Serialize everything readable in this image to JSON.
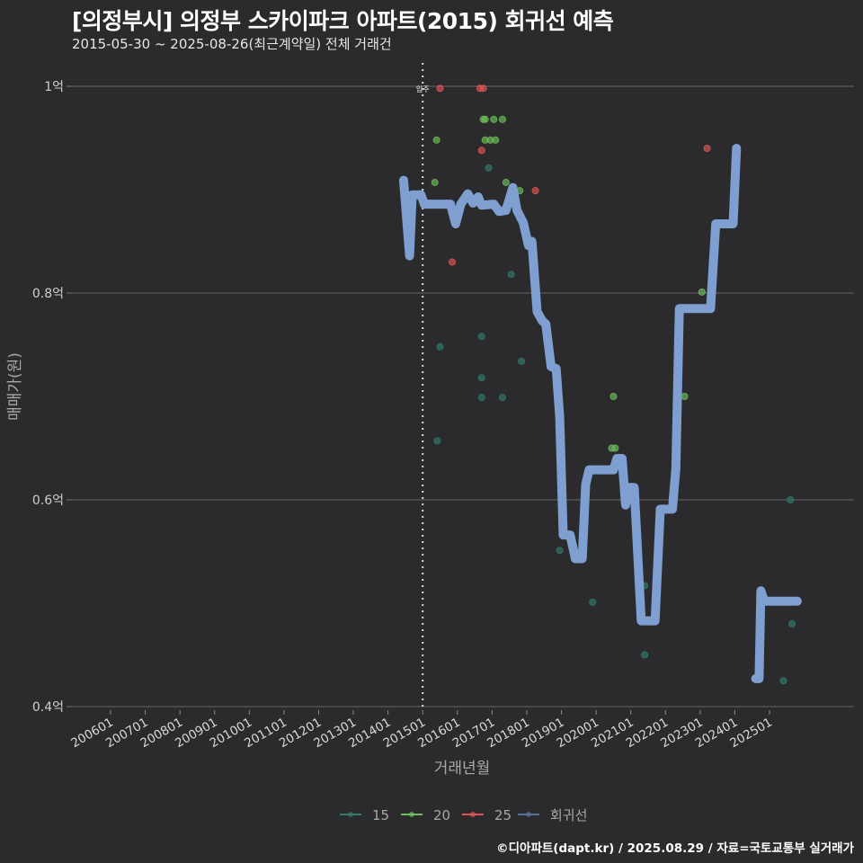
{
  "header": {
    "title": "[의정부시] 의정부 스카이파크 아파트(2015) 회귀선 예측",
    "subtitle": "2015-05-30 ~ 2025-08-26(최근계약일) 전체 거래건"
  },
  "footer": {
    "credit": "©디아파트(dapt.kr) / 2025.08.29 / 자료=국토교통부 실거래가"
  },
  "colors": {
    "background": "#2b2b2d",
    "grid": "#5a5a5a",
    "s15": "#2f7a6a",
    "s20": "#6cbf5a",
    "s25": "#e05555",
    "regression": "#7f9fd0"
  },
  "chart_data": {
    "type": "scatter",
    "title": "[의정부시] 의정부 스카이파크 아파트(2015) 회귀선 예측",
    "subtitle": "2015-05-30 ~ 2025-08-26(최근계약일) 전체 거래건",
    "xlabel": "거래년월",
    "ylabel": "매매가(원)",
    "x_tick_labels": [
      "200601",
      "200701",
      "200801",
      "200901",
      "201001",
      "201101",
      "201201",
      "201301",
      "201401",
      "201501",
      "201601",
      "201701",
      "201801",
      "201901",
      "202001",
      "202101",
      "202201",
      "202301",
      "202401",
      "202501"
    ],
    "y_tick_labels": [
      "0.4억",
      "0.6억",
      "0.8억",
      "1억"
    ],
    "y_ticks": [
      0.4,
      0.6,
      0.8,
      1.0
    ],
    "ylim": [
      0.4,
      1.02
    ],
    "xlim": [
      2005.5,
      2027.2
    ],
    "grid": true,
    "legend_position": "bottom",
    "legend": [
      "15",
      "20",
      "25",
      "회귀선"
    ],
    "annotation": {
      "text": "입주",
      "x": 2015.0,
      "style": "dotted vertical line"
    },
    "series": [
      {
        "name": "15",
        "type": "scatter",
        "points": [
          [
            2015.42,
            0.657
          ],
          [
            2015.5,
            0.748
          ],
          [
            2016.7,
            0.758
          ],
          [
            2016.7,
            0.718
          ],
          [
            2016.7,
            0.699
          ],
          [
            2016.9,
            0.921
          ],
          [
            2017.3,
            0.699
          ],
          [
            2017.55,
            0.818
          ],
          [
            2017.85,
            0.734
          ],
          [
            2018.95,
            0.551
          ],
          [
            2019.9,
            0.501
          ],
          [
            2021.4,
            0.45
          ],
          [
            2021.4,
            0.517
          ],
          [
            2025.4,
            0.425
          ],
          [
            2025.6,
            0.6
          ],
          [
            2025.65,
            0.48
          ]
        ]
      },
      {
        "name": "20",
        "type": "scatter",
        "points": [
          [
            2015.35,
            0.907
          ],
          [
            2015.4,
            0.948
          ],
          [
            2016.75,
            0.968
          ],
          [
            2016.8,
            0.968
          ],
          [
            2017.05,
            0.968
          ],
          [
            2017.3,
            0.968
          ],
          [
            2016.8,
            0.948
          ],
          [
            2016.95,
            0.948
          ],
          [
            2017.1,
            0.948
          ],
          [
            2017.4,
            0.907
          ],
          [
            2017.8,
            0.899
          ],
          [
            2020.5,
            0.7
          ],
          [
            2020.45,
            0.65
          ],
          [
            2020.55,
            0.65
          ],
          [
            2022.55,
            0.7
          ],
          [
            2023.05,
            0.801
          ]
        ]
      },
      {
        "name": "25",
        "type": "scatter",
        "points": [
          [
            2015.5,
            0.998
          ],
          [
            2016.65,
            0.998
          ],
          [
            2016.75,
            0.998
          ],
          [
            2016.7,
            0.938
          ],
          [
            2015.85,
            0.83
          ],
          [
            2018.25,
            0.899
          ],
          [
            2023.2,
            0.94
          ]
        ]
      },
      {
        "name": "회귀선",
        "type": "line",
        "points": [
          [
            2014.45,
            0.909
          ],
          [
            2014.62,
            0.836
          ],
          [
            2014.7,
            0.895
          ],
          [
            2014.95,
            0.895
          ],
          [
            2015.05,
            0.886
          ],
          [
            2015.8,
            0.886
          ],
          [
            2015.95,
            0.867
          ],
          [
            2016.1,
            0.886
          ],
          [
            2016.3,
            0.896
          ],
          [
            2016.45,
            0.887
          ],
          [
            2016.6,
            0.893
          ],
          [
            2016.7,
            0.885
          ],
          [
            2017.05,
            0.886
          ],
          [
            2017.2,
            0.879
          ],
          [
            2017.4,
            0.88
          ],
          [
            2017.6,
            0.902
          ],
          [
            2017.72,
            0.88
          ],
          [
            2017.9,
            0.868
          ],
          [
            2018.05,
            0.846
          ],
          [
            2018.15,
            0.85
          ],
          [
            2018.3,
            0.782
          ],
          [
            2018.45,
            0.773
          ],
          [
            2018.55,
            0.77
          ],
          [
            2018.7,
            0.729
          ],
          [
            2018.85,
            0.727
          ],
          [
            2018.95,
            0.68
          ],
          [
            2019.05,
            0.566
          ],
          [
            2019.25,
            0.566
          ],
          [
            2019.4,
            0.543
          ],
          [
            2019.6,
            0.543
          ],
          [
            2019.7,
            0.615
          ],
          [
            2019.8,
            0.629
          ],
          [
            2020.5,
            0.629
          ],
          [
            2020.6,
            0.64
          ],
          [
            2020.75,
            0.64
          ],
          [
            2020.85,
            0.595
          ],
          [
            2020.95,
            0.612
          ],
          [
            2021.1,
            0.612
          ],
          [
            2021.3,
            0.483
          ],
          [
            2021.7,
            0.483
          ],
          [
            2021.85,
            0.591
          ],
          [
            2022.2,
            0.591
          ],
          [
            2022.3,
            0.63
          ],
          [
            2022.4,
            0.785
          ],
          [
            2023.3,
            0.785
          ],
          [
            2023.45,
            0.867
          ],
          [
            2023.95,
            0.867
          ],
          [
            2024.05,
            0.94
          ],
          null,
          [
            2024.6,
            0.427
          ],
          [
            2024.7,
            0.427
          ],
          [
            2024.75,
            0.512
          ],
          [
            2024.85,
            0.502
          ],
          [
            2025.8,
            0.502
          ]
        ]
      }
    ]
  }
}
